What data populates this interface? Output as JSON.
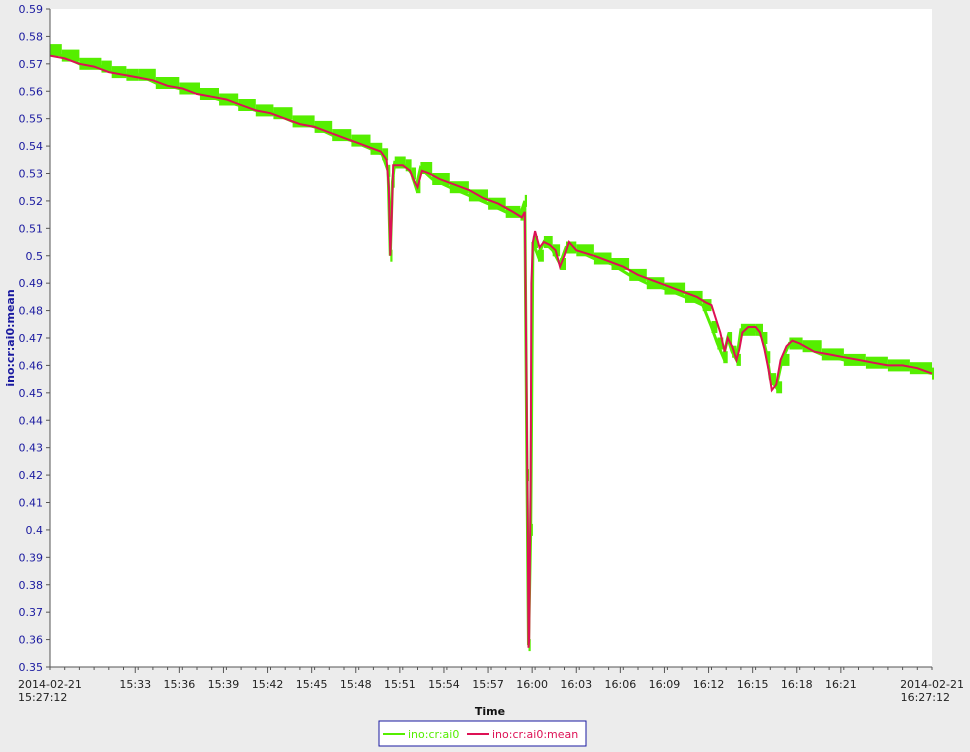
{
  "chart_data": {
    "type": "line",
    "xlabel": "Time",
    "ylabel": "ino:cr:ai0:mean",
    "ylim": [
      0.35,
      0.59
    ],
    "y_ticks": [
      "0.35",
      "0.36",
      "0.37",
      "0.38",
      "0.39",
      "0.4",
      "0.41",
      "0.42",
      "0.43",
      "0.44",
      "0.45",
      "0.46",
      "0.47",
      "0.48",
      "0.49",
      "0.5",
      "0.51",
      "0.52",
      "0.53",
      "0.54",
      "0.55",
      "0.56",
      "0.57",
      "0.58",
      "0.59"
    ],
    "x_range_minutes": [
      0,
      60
    ],
    "x_start_label": [
      "2014-02-21",
      "15:27:12"
    ],
    "x_end_label": [
      "2014-02-21",
      "16:27:12"
    ],
    "x_ticks": [
      "15:33",
      "15:36",
      "15:39",
      "15:42",
      "15:45",
      "15:48",
      "15:51",
      "15:54",
      "15:57",
      "16:00",
      "16:03",
      "16:06",
      "16:09",
      "16:12",
      "16:15",
      "16:18",
      "16:21"
    ],
    "x_ticks_minutes": [
      5.8,
      8.8,
      11.8,
      14.8,
      17.8,
      20.8,
      23.8,
      26.8,
      29.8,
      32.8,
      35.8,
      38.8,
      41.8,
      44.8,
      47.8,
      50.8,
      53.8
    ],
    "legend_position": "bottom-center",
    "series": [
      {
        "name": "ino:cr:ai0",
        "color": "#55ee00",
        "style": "bands",
        "points": [
          [
            0.0,
            0.575
          ],
          [
            0.8,
            0.573
          ],
          [
            2.0,
            0.57
          ],
          [
            3.5,
            0.569
          ],
          [
            4.2,
            0.567
          ],
          [
            5.2,
            0.566
          ],
          [
            6.0,
            0.566
          ],
          [
            7.2,
            0.563
          ],
          [
            8.8,
            0.561
          ],
          [
            10.2,
            0.559
          ],
          [
            11.5,
            0.557
          ],
          [
            12.8,
            0.555
          ],
          [
            14.0,
            0.553
          ],
          [
            15.2,
            0.552
          ],
          [
            16.5,
            0.549
          ],
          [
            18.0,
            0.547
          ],
          [
            19.2,
            0.544
          ],
          [
            20.5,
            0.542
          ],
          [
            21.8,
            0.539
          ],
          [
            22.6,
            0.537
          ],
          [
            23.0,
            0.531
          ],
          [
            23.15,
            0.5
          ],
          [
            23.3,
            0.527
          ],
          [
            23.45,
            0.534
          ],
          [
            24.2,
            0.533
          ],
          [
            24.6,
            0.53
          ],
          [
            24.9,
            0.525
          ],
          [
            25.2,
            0.532
          ],
          [
            26.0,
            0.528
          ],
          [
            27.2,
            0.525
          ],
          [
            28.5,
            0.522
          ],
          [
            29.8,
            0.519
          ],
          [
            31.0,
            0.516
          ],
          [
            32.0,
            0.515
          ],
          [
            32.3,
            0.52
          ],
          [
            32.45,
            0.42
          ],
          [
            32.55,
            0.358
          ],
          [
            32.7,
            0.4
          ],
          [
            32.85,
            0.505
          ],
          [
            33.2,
            0.5
          ],
          [
            33.6,
            0.505
          ],
          [
            34.2,
            0.502
          ],
          [
            34.7,
            0.497
          ],
          [
            35.1,
            0.503
          ],
          [
            35.8,
            0.502
          ],
          [
            37.0,
            0.499
          ],
          [
            38.2,
            0.497
          ],
          [
            39.4,
            0.493
          ],
          [
            40.6,
            0.49
          ],
          [
            41.8,
            0.488
          ],
          [
            43.2,
            0.485
          ],
          [
            44.4,
            0.482
          ],
          [
            45.0,
            0.474
          ],
          [
            45.4,
            0.468
          ],
          [
            45.8,
            0.463
          ],
          [
            46.1,
            0.47
          ],
          [
            46.4,
            0.465
          ],
          [
            46.7,
            0.462
          ],
          [
            47.0,
            0.473
          ],
          [
            48.0,
            0.473
          ],
          [
            48.5,
            0.47
          ],
          [
            48.8,
            0.463
          ],
          [
            49.0,
            0.455
          ],
          [
            49.4,
            0.452
          ],
          [
            49.8,
            0.462
          ],
          [
            50.3,
            0.468
          ],
          [
            51.2,
            0.467
          ],
          [
            52.5,
            0.464
          ],
          [
            54.0,
            0.462
          ],
          [
            55.5,
            0.461
          ],
          [
            57.0,
            0.46
          ],
          [
            58.5,
            0.459
          ],
          [
            60.0,
            0.457
          ]
        ]
      },
      {
        "name": "ino:cr:ai0:mean",
        "color": "#dd1155",
        "style": "line",
        "points": [
          [
            0.0,
            0.573
          ],
          [
            1.0,
            0.572
          ],
          [
            2.0,
            0.57
          ],
          [
            3.0,
            0.569
          ],
          [
            4.0,
            0.567
          ],
          [
            5.0,
            0.566
          ],
          [
            6.0,
            0.565
          ],
          [
            7.0,
            0.564
          ],
          [
            8.0,
            0.562
          ],
          [
            9.0,
            0.561
          ],
          [
            10.0,
            0.559
          ],
          [
            11.0,
            0.558
          ],
          [
            12.0,
            0.557
          ],
          [
            13.0,
            0.555
          ],
          [
            14.0,
            0.553
          ],
          [
            15.0,
            0.552
          ],
          [
            16.0,
            0.55
          ],
          [
            17.0,
            0.548
          ],
          [
            18.0,
            0.547
          ],
          [
            19.0,
            0.545
          ],
          [
            20.0,
            0.543
          ],
          [
            21.0,
            0.541
          ],
          [
            22.0,
            0.539
          ],
          [
            22.5,
            0.538
          ],
          [
            22.9,
            0.535
          ],
          [
            23.05,
            0.525
          ],
          [
            23.15,
            0.5
          ],
          [
            23.25,
            0.515
          ],
          [
            23.35,
            0.533
          ],
          [
            24.0,
            0.533
          ],
          [
            24.5,
            0.531
          ],
          [
            24.8,
            0.527
          ],
          [
            25.0,
            0.525
          ],
          [
            25.3,
            0.531
          ],
          [
            25.8,
            0.53
          ],
          [
            26.5,
            0.528
          ],
          [
            27.5,
            0.526
          ],
          [
            28.5,
            0.524
          ],
          [
            29.5,
            0.521
          ],
          [
            30.5,
            0.519
          ],
          [
            31.5,
            0.516
          ],
          [
            32.1,
            0.514
          ],
          [
            32.3,
            0.516
          ],
          [
            32.4,
            0.46
          ],
          [
            32.5,
            0.4
          ],
          [
            32.55,
            0.357
          ],
          [
            32.6,
            0.36
          ],
          [
            32.7,
            0.42
          ],
          [
            32.75,
            0.49
          ],
          [
            32.85,
            0.505
          ],
          [
            33.0,
            0.509
          ],
          [
            33.3,
            0.503
          ],
          [
            33.6,
            0.505
          ],
          [
            34.0,
            0.504
          ],
          [
            34.4,
            0.502
          ],
          [
            34.7,
            0.496
          ],
          [
            35.0,
            0.5
          ],
          [
            35.3,
            0.505
          ],
          [
            35.8,
            0.502
          ],
          [
            37.0,
            0.5
          ],
          [
            38.0,
            0.498
          ],
          [
            39.0,
            0.496
          ],
          [
            40.0,
            0.493
          ],
          [
            41.0,
            0.491
          ],
          [
            42.0,
            0.489
          ],
          [
            43.0,
            0.487
          ],
          [
            44.0,
            0.485
          ],
          [
            44.6,
            0.483
          ],
          [
            45.0,
            0.482
          ],
          [
            45.3,
            0.477
          ],
          [
            45.6,
            0.472
          ],
          [
            45.9,
            0.465
          ],
          [
            46.1,
            0.47
          ],
          [
            46.4,
            0.467
          ],
          [
            46.7,
            0.462
          ],
          [
            46.9,
            0.466
          ],
          [
            47.1,
            0.472
          ],
          [
            47.5,
            0.474
          ],
          [
            48.0,
            0.474
          ],
          [
            48.3,
            0.472
          ],
          [
            48.6,
            0.466
          ],
          [
            48.9,
            0.458
          ],
          [
            49.1,
            0.451
          ],
          [
            49.4,
            0.453
          ],
          [
            49.7,
            0.462
          ],
          [
            50.1,
            0.467
          ],
          [
            50.5,
            0.469
          ],
          [
            51.0,
            0.468
          ],
          [
            52.0,
            0.465
          ],
          [
            53.0,
            0.464
          ],
          [
            54.0,
            0.463
          ],
          [
            55.0,
            0.462
          ],
          [
            56.0,
            0.461
          ],
          [
            57.0,
            0.46
          ],
          [
            58.0,
            0.46
          ],
          [
            59.0,
            0.459
          ],
          [
            60.0,
            0.457
          ]
        ]
      }
    ]
  }
}
